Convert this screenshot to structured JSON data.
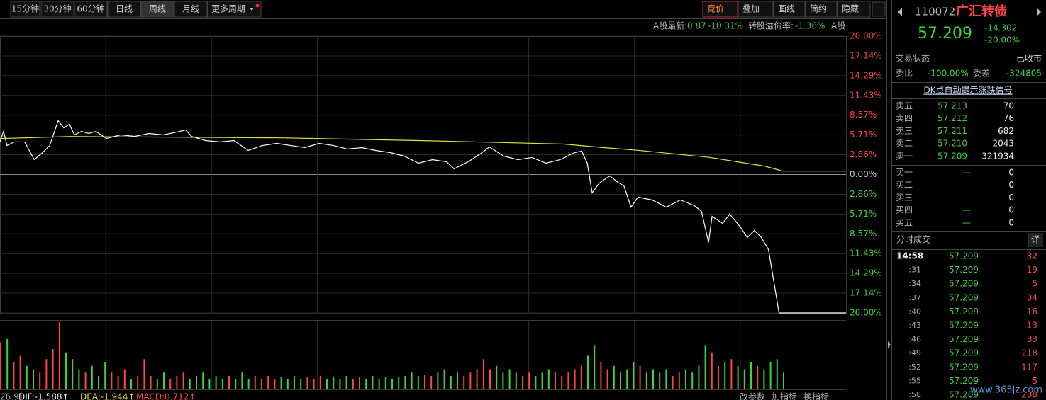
{
  "toolbar": {
    "tabs": [
      "15分钟",
      "30分钟",
      "60分钟",
      "日线",
      "周线",
      "月线",
      "更多周期"
    ],
    "tools": [
      "竞价",
      "叠加",
      "画线",
      "简约",
      "隐藏"
    ]
  },
  "info": {
    "a_label": "A股最新:",
    "a_price": "0.87",
    "a_change": "-10.31%",
    "premium_label": "转股溢价率:",
    "premium": "-1.36%",
    "a_tag": "A股"
  },
  "chart_data": {
    "type": "line",
    "xlim": [
      0,
      240
    ],
    "xticks": [
      30,
      60,
      90,
      120,
      150,
      180,
      210
    ],
    "ylim": [
      -20,
      20
    ],
    "yticks": [
      {
        "value": 20,
        "label": "20.00%"
      },
      {
        "value": 17.14,
        "label": "17.14%"
      },
      {
        "value": 14.29,
        "label": "14.29%"
      },
      {
        "value": 11.43,
        "label": "11.43%"
      },
      {
        "value": 8.57,
        "label": "8.57%"
      },
      {
        "value": 5.71,
        "label": "5.71%"
      },
      {
        "value": 2.86,
        "label": "2.86%"
      },
      {
        "value": 0,
        "label": "0.00%"
      },
      {
        "value": -2.86,
        "label": "2.86%"
      },
      {
        "value": -5.71,
        "label": "5.71%"
      },
      {
        "value": -8.57,
        "label": "8.57%"
      },
      {
        "value": -11.43,
        "label": "11.43%"
      },
      {
        "value": -14.29,
        "label": "14.29%"
      },
      {
        "value": -17.14,
        "label": "17.14%"
      },
      {
        "value": -20,
        "label": "20.00%"
      }
    ],
    "grid": true,
    "up_color": "#ff4444",
    "down_color": "#3cd33c",
    "price": {
      "color": "#ffffff",
      "x": [
        0,
        1,
        2,
        4,
        7,
        9.7,
        12.1,
        14.1,
        16.5,
        18.1,
        19.7,
        21.1,
        23.1,
        25.2,
        27.2,
        30.2,
        34.2,
        38.2,
        42.3,
        46.3,
        49.3,
        52.7,
        54.3,
        58.3,
        62.4,
        66.4,
        70.4,
        74.4,
        78.5,
        82.5,
        86.5,
        90.5,
        94.6,
        98.6,
        102.6,
        106.6,
        110.7,
        114.7,
        118.7,
        122.7,
        126.7,
        128.8,
        132.8,
        136.8,
        138.8,
        142.9,
        146.9,
        150.9,
        154.9,
        158.9,
        163,
        165,
        166.6,
        168,
        170,
        173,
        175,
        177,
        179,
        181,
        183,
        185,
        189,
        193,
        197,
        199,
        201,
        202,
        205,
        207,
        210,
        212,
        214,
        216,
        218,
        221,
        240
      ],
      "values": [
        4.71,
        6.24,
        4.19,
        4.71,
        4.71,
        2.15,
        3.17,
        4.19,
        7.78,
        6.75,
        7.26,
        5.73,
        6.24,
        5.93,
        6.24,
        5.22,
        5.73,
        5.52,
        5.93,
        5.73,
        6.04,
        6.45,
        5.52,
        4.91,
        4.71,
        4.91,
        3.48,
        4.19,
        4.5,
        4.19,
        3.89,
        4.5,
        4.19,
        3.68,
        3.89,
        3.48,
        3.17,
        2.66,
        1.64,
        2.15,
        1.84,
        0.82,
        1.84,
        3.17,
        3.99,
        2.66,
        2.15,
        2.46,
        1.64,
        2.15,
        3.17,
        3.38,
        1.64,
        -2.66,
        -1.23,
        -0.2,
        -1.02,
        -1.64,
        -4.71,
        -3.27,
        -3.48,
        -3.68,
        -4.71,
        -3.68,
        -4.5,
        -5.32,
        -9.82,
        -6.04,
        -7.06,
        -5.73,
        -7.57,
        -9.11,
        -8.08,
        -9.11,
        -10.84,
        -20.0,
        -20.0
      ]
    },
    "average": {
      "color": "#e8e040",
      "x": [
        0,
        20,
        80,
        120,
        160,
        171,
        181,
        201,
        217,
        222,
        240
      ],
      "values": [
        5.2,
        5.5,
        5.3,
        4.9,
        4.4,
        3.9,
        3.5,
        2.5,
        1.2,
        0.5,
        0.5
      ]
    },
    "volume_ylim": [
      0,
      100
    ],
    "volume": [
      70,
      75,
      40,
      50,
      35,
      30,
      25,
      45,
      60,
      100,
      55,
      45,
      30,
      25,
      35,
      20,
      40,
      25,
      20,
      30,
      15,
      20,
      45,
      20,
      15,
      25,
      15,
      20,
      25,
      15,
      20,
      25,
      15,
      20,
      15,
      20,
      15,
      25,
      15,
      20,
      15,
      20,
      15,
      18,
      15,
      20,
      15,
      18,
      15,
      20,
      15,
      18,
      15,
      20,
      15,
      18,
      15,
      20,
      15,
      18,
      15,
      18,
      20,
      25,
      20,
      22,
      20,
      25,
      30,
      20,
      25,
      20,
      25,
      30,
      45,
      30,
      35,
      25,
      30,
      25,
      20,
      25,
      20,
      25,
      30,
      25,
      20,
      25,
      30,
      35,
      50,
      65,
      40,
      30,
      35,
      25,
      30,
      40,
      35,
      25,
      30,
      25,
      30,
      20,
      25,
      30,
      25,
      35,
      65,
      55,
      35,
      40,
      45,
      35,
      30,
      40,
      35,
      30,
      40,
      45,
      25
    ]
  },
  "indicator": {
    "left": "26.9)",
    "dif": "DIF:-1.588↑",
    "dea": "DEA:-1.944↑",
    "macd": "MACD:0.712↑",
    "buttons": [
      "改参数",
      "加指标",
      "换指标"
    ]
  },
  "quote": {
    "code": "110072",
    "name": "广汇转债",
    "price": "57.209",
    "change": "-14.302",
    "change_pct": "-20.00%",
    "status_label": "交易状态",
    "status": "已收市",
    "ratio_label": "委比",
    "ratio": "-100.00%",
    "diff_label": "委差",
    "diff": "-324805",
    "signal": "DK点自动提示涨跌信号",
    "asks": [
      [
        "卖五",
        "57.213",
        "70"
      ],
      [
        "卖四",
        "57.212",
        "76"
      ],
      [
        "卖三",
        "57.211",
        "682"
      ],
      [
        "卖二",
        "57.210",
        "2043"
      ],
      [
        "卖一",
        "57.209",
        "321934"
      ]
    ],
    "bids": [
      [
        "买一",
        "—",
        "0"
      ],
      [
        "买二",
        "—",
        "0"
      ],
      [
        "买三",
        "—",
        "0"
      ],
      [
        "买四",
        "—",
        "0"
      ],
      [
        "买五",
        "—",
        "0"
      ]
    ]
  },
  "trades": {
    "title": "分时成交",
    "detail": "详",
    "rows": [
      [
        "14:58",
        "57.209",
        "32"
      ],
      [
        ":31",
        "57.209",
        "19"
      ],
      [
        ":34",
        "57.209",
        "5"
      ],
      [
        ":37",
        "57.209",
        "34"
      ],
      [
        ":40",
        "57.209",
        "16"
      ],
      [
        ":43",
        "57.209",
        "13"
      ],
      [
        ":46",
        "57.209",
        "33"
      ],
      [
        ":49",
        "57.209",
        "218"
      ],
      [
        ":52",
        "57.209",
        "117"
      ],
      [
        ":55",
        "57.209",
        "5"
      ],
      [
        ":58",
        "57.209",
        "288"
      ]
    ]
  },
  "watermark": "www.365jz.com"
}
